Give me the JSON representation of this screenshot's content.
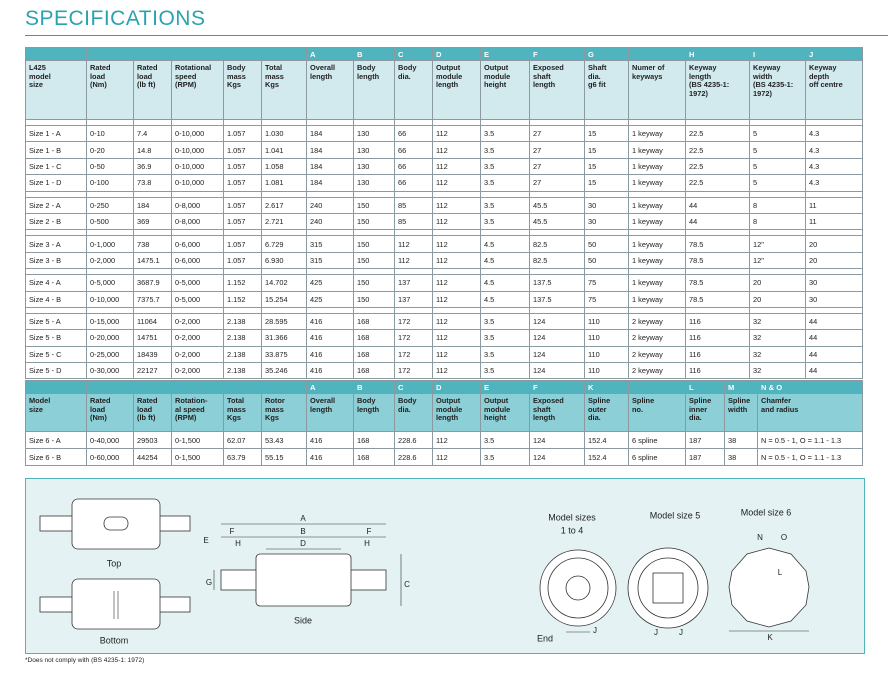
{
  "title": "SPECIFICATIONS",
  "table1": {
    "letters": [
      null,
      null,
      null,
      null,
      null,
      null,
      "A",
      "B",
      "C",
      "D",
      "E",
      "F",
      "G",
      null,
      "H",
      "I",
      "J"
    ],
    "header": [
      "L425\nmodel\nsize",
      "Rated\nload\n(Nm)",
      "Rated\nload\n(lb ft)",
      "Rotational\nspeed\n(RPM)",
      "Body\nmass\nKgs",
      "Total\nmass\nKgs",
      "Overall\nlength",
      "Body\nlength",
      "Body\ndia.",
      "Output\nmodule\nlength",
      "Output\nmodule\nheight",
      "Exposed\nshaft\nlength",
      "Shaft\ndia.\ng6 fit",
      "Numer of\nkeyways",
      "Keyway\nlength\n(BS 4235-1:\n1972)",
      "Keyway\nwidth\n(BS 4235-1:\n1972)",
      "Keyway\ndepth\noff centre"
    ],
    "groups": [
      [
        [
          "Size 1 - A",
          "0-10",
          "7.4",
          "0-10,000",
          "1.057",
          "1.030",
          "184",
          "130",
          "66",
          "112",
          "3.5",
          "27",
          "15",
          "1 keyway",
          "22.5",
          "5",
          "4.3"
        ],
        [
          "Size 1 - B",
          "0-20",
          "14.8",
          "0-10,000",
          "1.057",
          "1.041",
          "184",
          "130",
          "66",
          "112",
          "3.5",
          "27",
          "15",
          "1 keyway",
          "22.5",
          "5",
          "4.3"
        ],
        [
          "Size 1 - C",
          "0-50",
          "36.9",
          "0-10,000",
          "1.057",
          "1.058",
          "184",
          "130",
          "66",
          "112",
          "3.5",
          "27",
          "15",
          "1 keyway",
          "22.5",
          "5",
          "4.3"
        ],
        [
          "Size 1 - D",
          "0-100",
          "73.8",
          "0-10,000",
          "1.057",
          "1.081",
          "184",
          "130",
          "66",
          "112",
          "3.5",
          "27",
          "15",
          "1 keyway",
          "22.5",
          "5",
          "4.3"
        ]
      ],
      [
        [
          "Size 2 - A",
          "0-250",
          "184",
          "0-8,000",
          "1.057",
          "2.617",
          "240",
          "150",
          "85",
          "112",
          "3.5",
          "45.5",
          "30",
          "1 keyway",
          "44",
          "8",
          "11"
        ],
        [
          "Size 2 - B",
          "0-500",
          "369",
          "0-8,000",
          "1.057",
          "2.721",
          "240",
          "150",
          "85",
          "112",
          "3.5",
          "45.5",
          "30",
          "1 keyway",
          "44",
          "8",
          "11"
        ]
      ],
      [
        [
          "Size 3 - A",
          "0-1,000",
          "738",
          "0-6,000",
          "1.057",
          "6.729",
          "315",
          "150",
          "112",
          "112",
          "4.5",
          "82.5",
          "50",
          "1 keyway",
          "78.5",
          "12\"",
          "20"
        ],
        [
          "Size 3 - B",
          "0-2,000",
          "1475.1",
          "0-6,000",
          "1.057",
          "6.930",
          "315",
          "150",
          "112",
          "112",
          "4.5",
          "82.5",
          "50",
          "1 keyway",
          "78.5",
          "12\"",
          "20"
        ]
      ],
      [
        [
          "Size 4 - A",
          "0-5,000",
          "3687.9",
          "0-5,000",
          "1.152",
          "14.702",
          "425",
          "150",
          "137",
          "112",
          "4.5",
          "137.5",
          "75",
          "1 keyway",
          "78.5",
          "20",
          "30"
        ],
        [
          "Size 4 - B",
          "0-10,000",
          "7375.7",
          "0-5,000",
          "1.152",
          "15.254",
          "425",
          "150",
          "137",
          "112",
          "4.5",
          "137.5",
          "75",
          "1 keyway",
          "78.5",
          "20",
          "30"
        ]
      ],
      [
        [
          "Size 5 - A",
          "0-15,000",
          "11064",
          "0-2,000",
          "2.138",
          "28.595",
          "416",
          "168",
          "172",
          "112",
          "3.5",
          "124",
          "110",
          "2 keyway",
          "116",
          "32",
          "44"
        ],
        [
          "Size 5 - B",
          "0-20,000",
          "14751",
          "0-2,000",
          "2.138",
          "31.366",
          "416",
          "168",
          "172",
          "112",
          "3.5",
          "124",
          "110",
          "2 keyway",
          "116",
          "32",
          "44"
        ],
        [
          "Size 5 - C",
          "0-25,000",
          "18439",
          "0-2,000",
          "2.138",
          "33.875",
          "416",
          "168",
          "172",
          "112",
          "3.5",
          "124",
          "110",
          "2 keyway",
          "116",
          "32",
          "44"
        ],
        [
          "Size 5 - D",
          "0-30,000",
          "22127",
          "0-2,000",
          "2.138",
          "35.246",
          "416",
          "168",
          "172",
          "112",
          "3.5",
          "124",
          "110",
          "2 keyway",
          "116",
          "32",
          "44"
        ]
      ]
    ]
  },
  "table2": {
    "letters": [
      null,
      null,
      null,
      null,
      null,
      null,
      "A",
      "B",
      "C",
      "D",
      "E",
      "F",
      "K",
      null,
      "L",
      "M",
      "N & O"
    ],
    "header": [
      "Model\nsize",
      "Rated\nload\n(Nm)",
      "Rated\nload\n(lb ft)",
      "Rotation-\nal speed\n(RPM)",
      "Total\nmass\nKgs",
      "Rotor\nmass\nKgs",
      "Overall\nlength",
      "Body\nlength",
      "Body\ndia.",
      "Output\nmodule\nlength",
      "Output\nmodule\nheight",
      "Exposed\nshaft\nlength",
      "Spline\nouter\ndia.",
      "Spline\nno.",
      "Spline\ninner\ndia.",
      "Spline\nwidth",
      "Chamfer\nand radius"
    ],
    "rows": [
      [
        "Size 6 - A",
        "0-40,000",
        "29503",
        "0-1,500",
        "62.07",
        "53.43",
        "416",
        "168",
        "228.6",
        "112",
        "3.5",
        "124",
        "152.4",
        "6 spline",
        "187",
        "38",
        "N = 0.5 - 1, O = 1.1 - 1.3"
      ],
      [
        "Size 6 - B",
        "0-60,000",
        "44254",
        "0-1,500",
        "63.79",
        "55.15",
        "416",
        "168",
        "228.6",
        "112",
        "3.5",
        "124",
        "152.4",
        "6 spline",
        "187",
        "38",
        "N = 0.5 - 1, O = 1.1 - 1.3"
      ]
    ]
  },
  "diagram": {
    "views": {
      "top": "Top",
      "bottom": "Bottom",
      "side": "Side",
      "end": "End"
    },
    "end_views": {
      "sizes_1_4": [
        "Model sizes",
        "1 to 4"
      ],
      "size_5": "Model size 5",
      "size_6": "Model size 6"
    },
    "dims": {
      "A": "A",
      "B": "B",
      "C": "C",
      "D": "D",
      "E": "E",
      "F": "F",
      "G": "G",
      "H": "H",
      "J": "J",
      "K": "K",
      "L": "L",
      "N": "N",
      "O": "O"
    }
  },
  "footnote": "*Does not comply with (BS 4235-1: 1972)"
}
